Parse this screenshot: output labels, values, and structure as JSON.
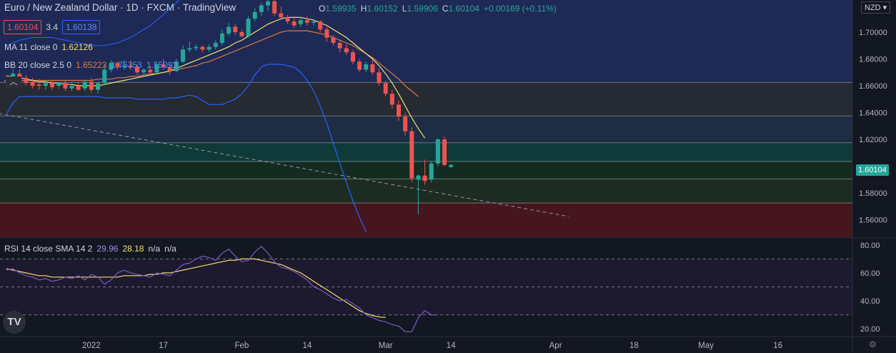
{
  "header": {
    "symbol": "Euro / New Zealand Dollar",
    "interval": "1D",
    "exchange": "FXCM",
    "source": "TradingView",
    "ohlc": {
      "o_label": "O",
      "o": "1.59935",
      "h_label": "H",
      "h": "1.60152",
      "l_label": "L",
      "l": "1.59906",
      "c_label": "C",
      "c": "1.60104",
      "change": "+0.00169 (+0.11%)"
    },
    "sell_price": "1.60104",
    "spread": "3.4",
    "buy_price": "1.60138",
    "currency": "NZD"
  },
  "indicators": {
    "ma": {
      "name": "MA 11 close 0",
      "value": "1.62126"
    },
    "bb": {
      "name": "BB 20 close 2.5 0",
      "basis": "1.65223",
      "upper": "1.75353",
      "lower": "1.55092"
    },
    "rsi": {
      "name": "RSI 14 close SMA 14 2",
      "value": "29.96",
      "sma": "28.18",
      "extra1": "n/a",
      "extra2": "n/a"
    }
  },
  "colors": {
    "background": "#131722",
    "up": "#26a69a",
    "down": "#ef5350",
    "ma": "#f4e06d",
    "bb_basis": "#e0793f",
    "bb_band": "#2962ff",
    "rsi": "#7e57c2",
    "rsi_sma": "#f4e06d"
  },
  "chart_data": [
    {
      "type": "candlestick",
      "title": "Euro / New Zealand Dollar",
      "ylim": [
        1.547,
        1.724
      ],
      "y_ticks": [
        "1.70000",
        "1.68000",
        "1.66000",
        "1.64000",
        "1.62000",
        "1.58000",
        "1.56000"
      ],
      "x_ticks": [
        "2022",
        "17",
        "Feb",
        "14",
        "Mar",
        "14",
        "Apr",
        "18",
        "May",
        "16"
      ],
      "current_price": "1.60104",
      "horizontal_levels": [
        1.6625,
        1.6375,
        1.6175,
        1.6035,
        1.5905,
        1.5725
      ],
      "zones": [
        {
          "from": 1.6625,
          "to": 1.724,
          "color": "#1e2a55"
        },
        {
          "from": 1.6375,
          "to": 1.6625,
          "color": "#252a33"
        },
        {
          "from": 1.6175,
          "to": 1.6375,
          "color": "#1e2d44"
        },
        {
          "from": 1.6035,
          "to": 1.6175,
          "color": "#103a3a"
        },
        {
          "from": 1.5905,
          "to": 1.6035,
          "color": "#142b22"
        },
        {
          "from": 1.5725,
          "to": 1.5905,
          "color": "#1d2c22"
        },
        {
          "from": 1.547,
          "to": 1.5725,
          "color": "#45161d"
        }
      ],
      "trendline": {
        "from_index": -7,
        "from": 1.6445,
        "to_index": 86,
        "to": 1.5625
      },
      "candles": [
        {
          "o": 1.664,
          "h": 1.668,
          "l": 1.658,
          "c": 1.663
        },
        {
          "o": 1.663,
          "h": 1.672,
          "l": 1.661,
          "c": 1.669
        },
        {
          "o": 1.669,
          "h": 1.672,
          "l": 1.664,
          "c": 1.666
        },
        {
          "o": 1.666,
          "h": 1.668,
          "l": 1.66,
          "c": 1.662
        },
        {
          "o": 1.663,
          "h": 1.666,
          "l": 1.658,
          "c": 1.66
        },
        {
          "o": 1.661,
          "h": 1.665,
          "l": 1.657,
          "c": 1.66
        },
        {
          "o": 1.66,
          "h": 1.664,
          "l": 1.657,
          "c": 1.662
        },
        {
          "o": 1.662,
          "h": 1.664,
          "l": 1.657,
          "c": 1.659
        },
        {
          "o": 1.66,
          "h": 1.663,
          "l": 1.658,
          "c": 1.662
        },
        {
          "o": 1.662,
          "h": 1.664,
          "l": 1.656,
          "c": 1.658
        },
        {
          "o": 1.658,
          "h": 1.662,
          "l": 1.656,
          "c": 1.66
        },
        {
          "o": 1.66,
          "h": 1.663,
          "l": 1.656,
          "c": 1.657
        },
        {
          "o": 1.658,
          "h": 1.664,
          "l": 1.656,
          "c": 1.663
        },
        {
          "o": 1.663,
          "h": 1.666,
          "l": 1.655,
          "c": 1.657
        },
        {
          "o": 1.657,
          "h": 1.663,
          "l": 1.654,
          "c": 1.662
        },
        {
          "o": 1.662,
          "h": 1.676,
          "l": 1.661,
          "c": 1.672
        },
        {
          "o": 1.672,
          "h": 1.679,
          "l": 1.67,
          "c": 1.677
        },
        {
          "o": 1.677,
          "h": 1.678,
          "l": 1.672,
          "c": 1.674
        },
        {
          "o": 1.674,
          "h": 1.679,
          "l": 1.672,
          "c": 1.675
        },
        {
          "o": 1.675,
          "h": 1.679,
          "l": 1.672,
          "c": 1.674
        },
        {
          "o": 1.674,
          "h": 1.676,
          "l": 1.668,
          "c": 1.67
        },
        {
          "o": 1.67,
          "h": 1.673,
          "l": 1.667,
          "c": 1.672
        },
        {
          "o": 1.672,
          "h": 1.675,
          "l": 1.669,
          "c": 1.67
        },
        {
          "o": 1.67,
          "h": 1.678,
          "l": 1.669,
          "c": 1.676
        },
        {
          "o": 1.676,
          "h": 1.68,
          "l": 1.672,
          "c": 1.674
        },
        {
          "o": 1.674,
          "h": 1.676,
          "l": 1.668,
          "c": 1.671
        },
        {
          "o": 1.671,
          "h": 1.68,
          "l": 1.67,
          "c": 1.678
        },
        {
          "o": 1.678,
          "h": 1.69,
          "l": 1.677,
          "c": 1.687
        },
        {
          "o": 1.687,
          "h": 1.693,
          "l": 1.685,
          "c": 1.688
        },
        {
          "o": 1.688,
          "h": 1.691,
          "l": 1.686,
          "c": 1.689
        },
        {
          "o": 1.689,
          "h": 1.69,
          "l": 1.685,
          "c": 1.687
        },
        {
          "o": 1.687,
          "h": 1.691,
          "l": 1.685,
          "c": 1.689
        },
        {
          "o": 1.689,
          "h": 1.694,
          "l": 1.687,
          "c": 1.692
        },
        {
          "o": 1.692,
          "h": 1.702,
          "l": 1.69,
          "c": 1.699
        },
        {
          "o": 1.699,
          "h": 1.707,
          "l": 1.697,
          "c": 1.704
        },
        {
          "o": 1.704,
          "h": 1.706,
          "l": 1.698,
          "c": 1.7
        },
        {
          "o": 1.7,
          "h": 1.702,
          "l": 1.696,
          "c": 1.697
        },
        {
          "o": 1.697,
          "h": 1.712,
          "l": 1.696,
          "c": 1.71
        },
        {
          "o": 1.71,
          "h": 1.718,
          "l": 1.708,
          "c": 1.715
        },
        {
          "o": 1.715,
          "h": 1.722,
          "l": 1.712,
          "c": 1.72
        },
        {
          "o": 1.72,
          "h": 1.724,
          "l": 1.716,
          "c": 1.723
        },
        {
          "o": 1.723,
          "h": 1.724,
          "l": 1.712,
          "c": 1.714
        },
        {
          "o": 1.714,
          "h": 1.719,
          "l": 1.709,
          "c": 1.711
        },
        {
          "o": 1.711,
          "h": 1.713,
          "l": 1.706,
          "c": 1.708
        },
        {
          "o": 1.708,
          "h": 1.712,
          "l": 1.703,
          "c": 1.705
        },
        {
          "o": 1.706,
          "h": 1.711,
          "l": 1.704,
          "c": 1.709
        },
        {
          "o": 1.709,
          "h": 1.712,
          "l": 1.705,
          "c": 1.707
        },
        {
          "o": 1.707,
          "h": 1.71,
          "l": 1.705,
          "c": 1.708
        },
        {
          "o": 1.708,
          "h": 1.709,
          "l": 1.7,
          "c": 1.702
        },
        {
          "o": 1.702,
          "h": 1.704,
          "l": 1.693,
          "c": 1.696
        },
        {
          "o": 1.696,
          "h": 1.698,
          "l": 1.69,
          "c": 1.692
        },
        {
          "o": 1.692,
          "h": 1.694,
          "l": 1.685,
          "c": 1.688
        },
        {
          "o": 1.688,
          "h": 1.691,
          "l": 1.683,
          "c": 1.685
        },
        {
          "o": 1.685,
          "h": 1.687,
          "l": 1.676,
          "c": 1.678
        },
        {
          "o": 1.678,
          "h": 1.68,
          "l": 1.67,
          "c": 1.672
        },
        {
          "o": 1.672,
          "h": 1.678,
          "l": 1.67,
          "c": 1.676
        },
        {
          "o": 1.676,
          "h": 1.679,
          "l": 1.668,
          "c": 1.67
        },
        {
          "o": 1.67,
          "h": 1.673,
          "l": 1.66,
          "c": 1.662
        },
        {
          "o": 1.662,
          "h": 1.664,
          "l": 1.652,
          "c": 1.654
        },
        {
          "o": 1.654,
          "h": 1.657,
          "l": 1.643,
          "c": 1.646
        },
        {
          "o": 1.646,
          "h": 1.649,
          "l": 1.634,
          "c": 1.637
        },
        {
          "o": 1.637,
          "h": 1.64,
          "l": 1.623,
          "c": 1.626
        },
        {
          "o": 1.626,
          "h": 1.629,
          "l": 1.588,
          "c": 1.591
        },
        {
          "o": 1.59,
          "h": 1.594,
          "l": 1.564,
          "c": 1.593
        },
        {
          "o": 1.593,
          "h": 1.605,
          "l": 1.586,
          "c": 1.589
        },
        {
          "o": 1.59,
          "h": 1.604,
          "l": 1.588,
          "c": 1.602
        },
        {
          "o": 1.602,
          "h": 1.621,
          "l": 1.6,
          "c": 1.62
        },
        {
          "o": 1.62,
          "h": 1.622,
          "l": 1.6,
          "c": 1.601
        },
        {
          "o": 1.5994,
          "h": 1.6015,
          "l": 1.5991,
          "c": 1.601
        }
      ],
      "ma11": [
        1.667,
        1.667,
        1.666,
        1.665,
        1.664,
        1.663,
        1.663,
        1.662,
        1.662,
        1.661,
        1.661,
        1.66,
        1.66,
        1.66,
        1.66,
        1.661,
        1.662,
        1.663,
        1.664,
        1.665,
        1.666,
        1.667,
        1.668,
        1.669,
        1.67,
        1.671,
        1.673,
        1.675,
        1.677,
        1.679,
        1.681,
        1.683,
        1.685,
        1.687,
        1.689,
        1.692,
        1.694,
        1.697,
        1.7,
        1.703,
        1.706,
        1.708,
        1.71,
        1.711,
        1.711,
        1.711,
        1.71,
        1.709,
        1.707,
        1.705,
        1.702,
        1.699,
        1.696,
        1.692,
        1.688,
        1.684,
        1.68,
        1.675,
        1.669,
        1.662,
        1.654,
        1.645,
        1.636,
        1.628,
        1.621
      ],
      "bb_basis": [
        1.664,
        1.664,
        1.664,
        1.664,
        1.664,
        1.664,
        1.664,
        1.664,
        1.664,
        1.664,
        1.664,
        1.664,
        1.664,
        1.664,
        1.665,
        1.665,
        1.665,
        1.666,
        1.666,
        1.667,
        1.667,
        1.668,
        1.669,
        1.669,
        1.67,
        1.671,
        1.672,
        1.673,
        1.674,
        1.675,
        1.677,
        1.678,
        1.68,
        1.682,
        1.684,
        1.686,
        1.688,
        1.69,
        1.692,
        1.694,
        1.696,
        1.698,
        1.7,
        1.701,
        1.701,
        1.701,
        1.701,
        1.7,
        1.699,
        1.698,
        1.696,
        1.694,
        1.692,
        1.69,
        1.687,
        1.684,
        1.681,
        1.677,
        1.673,
        1.669,
        1.665,
        1.66,
        1.656,
        1.652
      ],
      "bb_upper": [
        1.69,
        1.692,
        1.694,
        1.695,
        1.696,
        1.696,
        1.696,
        1.696,
        1.695,
        1.694,
        1.693,
        1.692,
        1.691,
        1.69,
        1.69,
        1.69,
        1.691,
        1.692,
        1.694,
        1.696,
        1.699,
        1.702,
        1.705,
        1.709,
        1.713,
        1.718,
        1.722,
        1.727,
        1.732,
        1.737,
        1.742,
        1.747,
        1.752,
        1.756
      ],
      "bb_lower": [
        1.639,
        1.647,
        1.652,
        1.652,
        1.652,
        1.652,
        1.652,
        1.652,
        1.652,
        1.652,
        1.652,
        1.652,
        1.652,
        1.652,
        1.652,
        1.651,
        1.651,
        1.651,
        1.651,
        1.651,
        1.65,
        1.65,
        1.65,
        1.65,
        1.65,
        1.651,
        1.651,
        1.652,
        1.653,
        1.652,
        1.649,
        1.646,
        1.646,
        1.646,
        1.648,
        1.65,
        1.654,
        1.66,
        1.668,
        1.674,
        1.676,
        1.676,
        1.676,
        1.675,
        1.674,
        1.67,
        1.664,
        1.656,
        1.645,
        1.632,
        1.617,
        1.602,
        1.588,
        1.574,
        1.562,
        1.551
      ]
    },
    {
      "type": "line",
      "title": "RSI 14 close SMA 14 2",
      "ylim": [
        15,
        85
      ],
      "y_ticks": [
        "80.00",
        "60.00",
        "40.00",
        "20.00"
      ],
      "bands": [
        70,
        50,
        30
      ],
      "rsi": [
        62,
        63,
        60,
        58,
        57,
        55,
        56,
        54,
        55,
        57,
        56,
        58,
        55,
        59,
        57,
        52,
        55,
        60,
        62,
        60,
        59,
        58,
        57,
        60,
        59,
        58,
        62,
        66,
        67,
        70,
        72,
        71,
        69,
        74,
        77,
        72,
        68,
        69,
        75,
        79,
        74,
        68,
        64,
        63,
        61,
        58,
        55,
        50,
        48,
        45,
        42,
        40,
        41,
        38,
        35,
        30,
        28,
        26,
        25,
        23,
        22,
        18,
        18,
        28,
        33,
        30,
        29.96
      ],
      "rsi_sma": [
        63,
        62,
        61,
        60,
        59,
        58,
        58,
        57,
        57,
        57,
        57,
        57,
        57,
        57,
        57,
        57,
        57,
        57,
        58,
        58,
        58,
        58,
        59,
        59,
        60,
        60,
        61,
        62,
        63,
        64,
        65,
        66,
        67,
        68,
        69,
        69,
        70,
        70,
        70,
        69,
        68,
        67,
        66,
        64,
        62,
        60,
        57,
        54,
        51,
        48,
        45,
        42,
        39,
        36,
        33,
        31,
        29.5,
        28.5,
        28.18
      ]
    }
  ]
}
